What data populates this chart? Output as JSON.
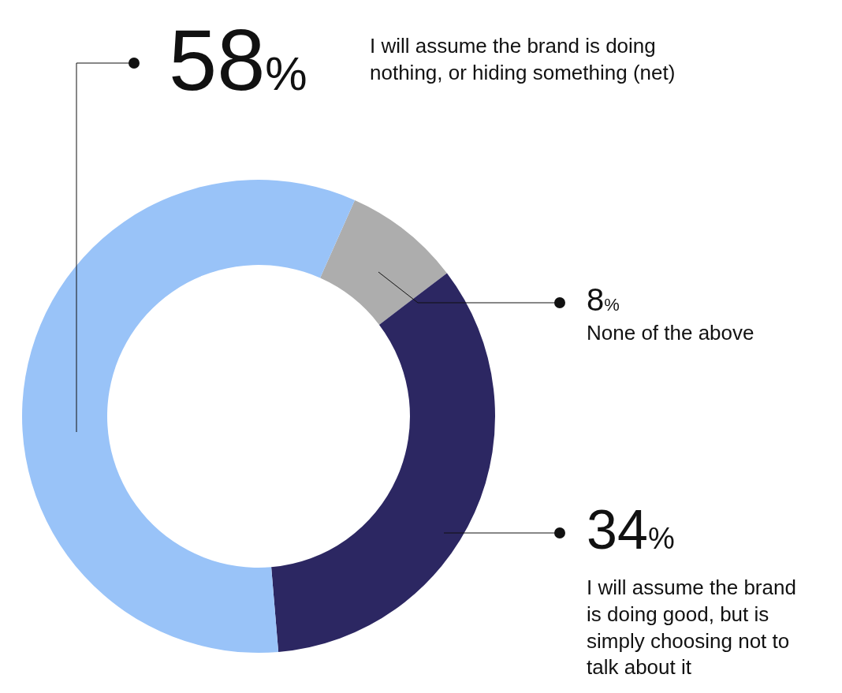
{
  "chart_data": {
    "type": "donut",
    "categories": [
      "None of the above",
      "I will assume the brand is doing good, but is simply choosing not to talk about it",
      "I will assume the brand is doing nothing, or hiding something (net)"
    ],
    "values": [
      8,
      34,
      58
    ],
    "value_labels": [
      "8%",
      "34%",
      "58%"
    ],
    "colors": [
      "#adadad",
      "#2c2762",
      "#99c3f8"
    ],
    "legend": false
  }
}
